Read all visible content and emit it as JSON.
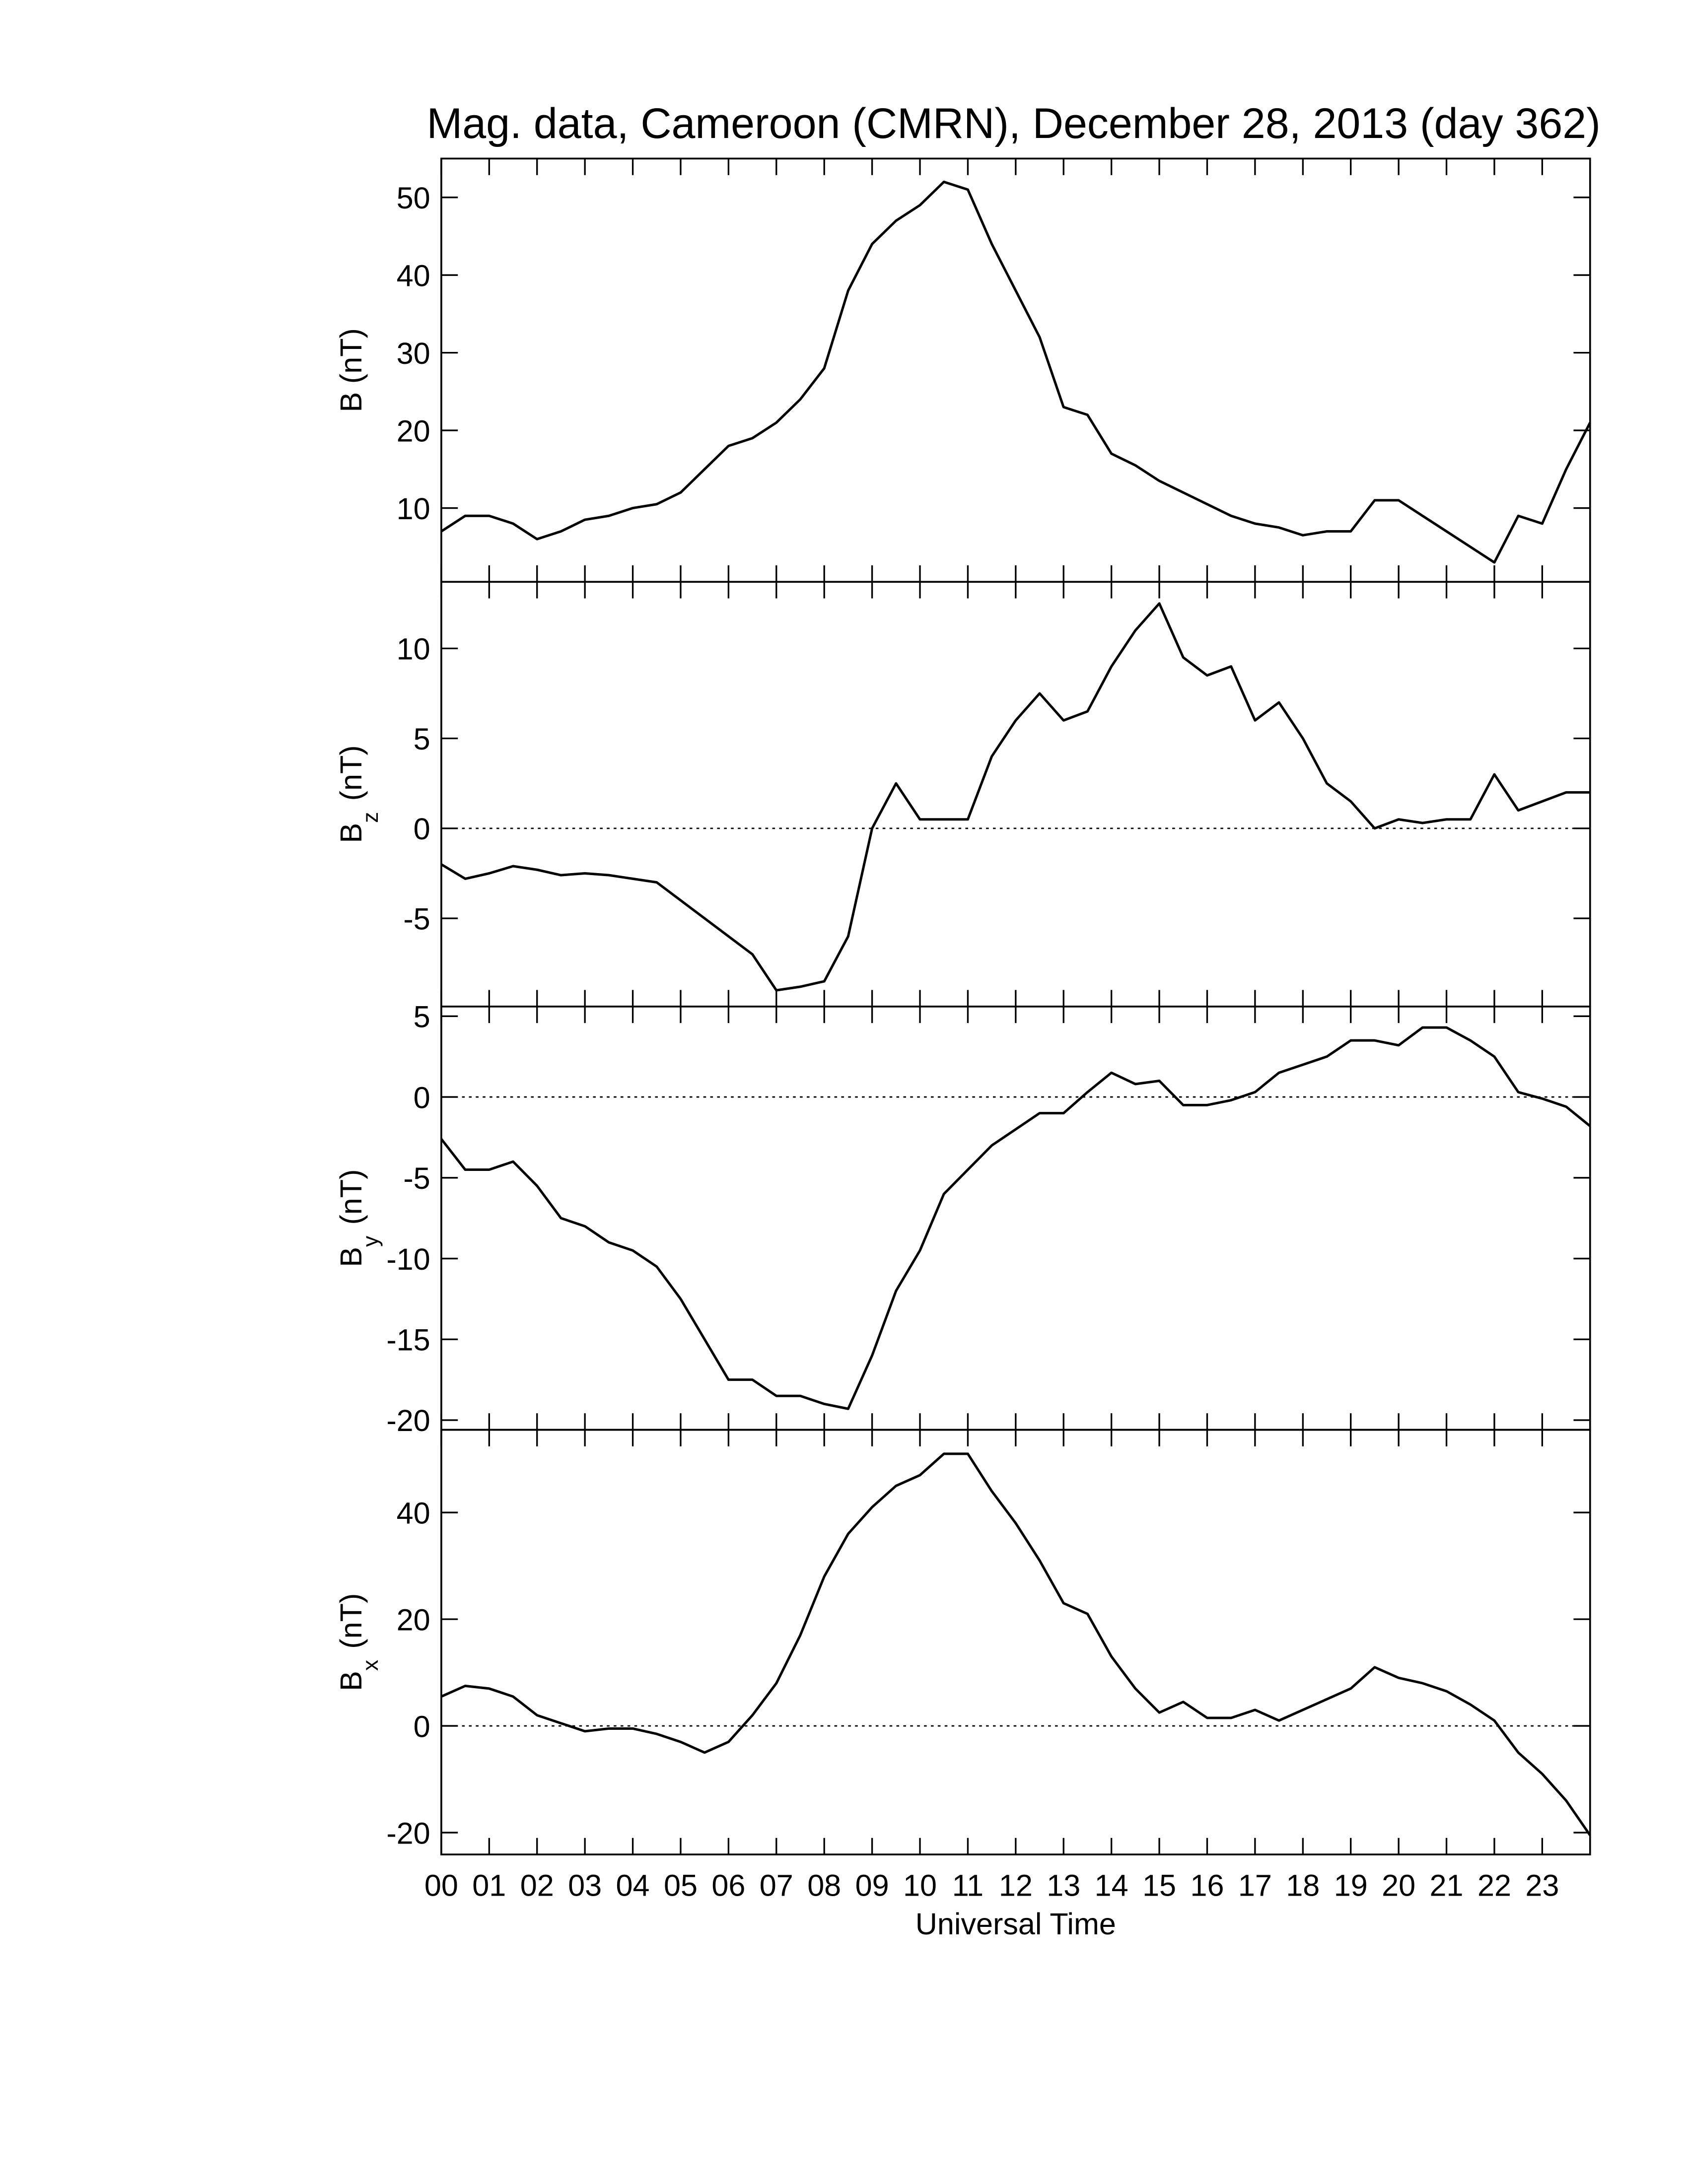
{
  "chart_data": [
    {
      "type": "line",
      "title": "Mag. data, Cameroon (CMRN), December 28, 2013 (day 362)",
      "ylabel": "B",
      "ylabel_unit": "(nT)",
      "ylim": [
        0.5,
        55
      ],
      "yticks": [
        10,
        20,
        30,
        40,
        50
      ],
      "zero_line": false,
      "xlim": [
        0,
        24
      ],
      "x": [
        0,
        0.5,
        1,
        1.5,
        2,
        2.5,
        3,
        3.5,
        4,
        4.5,
        5,
        5.5,
        6,
        6.5,
        7,
        7.5,
        8,
        8.5,
        9,
        9.5,
        10,
        10.5,
        11,
        11.5,
        12,
        12.5,
        13,
        13.5,
        14,
        14.5,
        15,
        15.5,
        16,
        16.5,
        17,
        17.5,
        18,
        18.5,
        19,
        19.5,
        20,
        20.5,
        21,
        21.5,
        22,
        22.5,
        23,
        23.5,
        24
      ],
      "series": [
        {
          "color": "#000000",
          "values": [
            7,
            9,
            9,
            8,
            6,
            7,
            8.5,
            9,
            10,
            10.5,
            12,
            15,
            18,
            19,
            21,
            24,
            28,
            38,
            44,
            47,
            49,
            52,
            51,
            44,
            38,
            32,
            23,
            22,
            17,
            15.5,
            13.5,
            12,
            10.5,
            9,
            8,
            7.5,
            6.5,
            7,
            7,
            11,
            11,
            9,
            7,
            5,
            3,
            9,
            8,
            15,
            21
          ]
        }
      ]
    },
    {
      "type": "line",
      "ylabel": "B",
      "ylabel_sub": "z",
      "ylabel_unit": "(nT)",
      "ylim": [
        -9.9,
        13.7
      ],
      "yticks": [
        -5,
        0,
        5,
        10
      ],
      "zero_line": true,
      "xlim": [
        0,
        24
      ],
      "x": [
        0,
        0.5,
        1,
        1.5,
        2,
        2.5,
        3,
        3.5,
        4,
        4.5,
        5,
        5.5,
        6,
        6.5,
        7,
        7.5,
        8,
        8.5,
        9,
        9.5,
        10,
        10.5,
        11,
        11.5,
        12,
        12.5,
        13,
        13.5,
        14,
        14.5,
        15,
        15.5,
        16,
        16.5,
        17,
        17.5,
        18,
        18.5,
        19,
        19.5,
        20,
        20.5,
        21,
        21.5,
        22,
        22.5,
        23,
        23.5,
        24
      ],
      "series": [
        {
          "color": "#000000",
          "values": [
            -2,
            -2.8,
            -2.5,
            -2.1,
            -2.3,
            -2.6,
            -2.5,
            -2.6,
            -2.8,
            -3,
            -4,
            -5,
            -6,
            -7,
            -9,
            -8.8,
            -8.5,
            -6,
            0,
            2.5,
            0.5,
            0.5,
            0.5,
            4,
            6,
            7.5,
            6,
            6.5,
            9,
            11,
            12.5,
            9.5,
            8.5,
            9,
            6,
            7,
            5,
            2.5,
            1.5,
            0,
            0.5,
            0.3,
            0.5,
            0.5,
            3,
            1,
            1.5,
            2,
            2
          ]
        }
      ]
    },
    {
      "type": "line",
      "ylabel": "B",
      "ylabel_sub": "y",
      "ylabel_unit": "(nT)",
      "ylim": [
        -20.6,
        5.6
      ],
      "yticks": [
        -20,
        -15,
        -10,
        -5,
        0,
        5
      ],
      "zero_line": true,
      "xlim": [
        0,
        24
      ],
      "x": [
        0,
        0.5,
        1,
        1.5,
        2,
        2.5,
        3,
        3.5,
        4,
        4.5,
        5,
        5.5,
        6,
        6.5,
        7,
        7.5,
        8,
        8.5,
        9,
        9.5,
        10,
        10.5,
        11,
        11.5,
        12,
        12.5,
        13,
        13.5,
        14,
        14.5,
        15,
        15.5,
        16,
        16.5,
        17,
        17.5,
        18,
        18.5,
        19,
        19.5,
        20,
        20.5,
        21,
        21.5,
        22,
        22.5,
        23,
        23.5,
        24
      ],
      "series": [
        {
          "color": "#000000",
          "values": [
            -2.6,
            -4.5,
            -4.5,
            -4,
            -5.5,
            -7.5,
            -8,
            -9,
            -9.5,
            -10.5,
            -12.5,
            -15,
            -17.5,
            -17.5,
            -18.5,
            -18.5,
            -19,
            -19.3,
            -16,
            -12,
            -9.5,
            -6,
            -4.5,
            -3,
            -2,
            -1,
            -1,
            0.3,
            1.5,
            0.8,
            1,
            -0.5,
            -0.5,
            -0.2,
            0.3,
            1.5,
            2,
            2.5,
            3.5,
            3.5,
            3.2,
            4.3,
            4.3,
            3.5,
            2.5,
            0.3,
            -0.1,
            -0.6,
            -1.8
          ]
        }
      ]
    },
    {
      "type": "line",
      "ylabel": "B",
      "ylabel_sub": "x",
      "ylabel_unit": "(nT)",
      "ylim": [
        -24.1,
        55.5
      ],
      "yticks": [
        -20,
        0,
        20,
        40
      ],
      "zero_line": true,
      "xlim": [
        0,
        24
      ],
      "xlabel": "Universal Time",
      "xticks": [
        {
          "value": 0,
          "label": "00"
        },
        {
          "value": 1,
          "label": "01"
        },
        {
          "value": 2,
          "label": "02"
        },
        {
          "value": 3,
          "label": "03"
        },
        {
          "value": 4,
          "label": "04"
        },
        {
          "value": 5,
          "label": "05"
        },
        {
          "value": 6,
          "label": "06"
        },
        {
          "value": 7,
          "label": "07"
        },
        {
          "value": 8,
          "label": "08"
        },
        {
          "value": 9,
          "label": "09"
        },
        10,
        11,
        12,
        13,
        14,
        15,
        16,
        17,
        18,
        19,
        20,
        21,
        22,
        23
      ],
      "x": [
        0,
        0.5,
        1,
        1.5,
        2,
        2.5,
        3,
        3.5,
        4,
        4.5,
        5,
        5.5,
        6,
        6.5,
        7,
        7.5,
        8,
        8.5,
        9,
        9.5,
        10,
        10.5,
        11,
        11.5,
        12,
        12.5,
        13,
        13.5,
        14,
        14.5,
        15,
        15.5,
        16,
        16.5,
        17,
        17.5,
        18,
        18.5,
        19,
        19.5,
        20,
        20.5,
        21,
        21.5,
        22,
        22.5,
        23,
        23.5,
        24
      ],
      "series": [
        {
          "color": "#000000",
          "values": [
            5.5,
            7.5,
            7,
            5.5,
            2,
            0.5,
            -1,
            -0.5,
            -0.5,
            -1.5,
            -3,
            -5,
            -3,
            2,
            8,
            17,
            28,
            36,
            41,
            45,
            47,
            51,
            51,
            44,
            38,
            31,
            23,
            21,
            13,
            7,
            2.5,
            4.5,
            1.5,
            1.5,
            3,
            1,
            3,
            5,
            7,
            11,
            9,
            8,
            6.5,
            4,
            1,
            -5,
            -9,
            -14,
            -20.5
          ]
        }
      ]
    }
  ]
}
